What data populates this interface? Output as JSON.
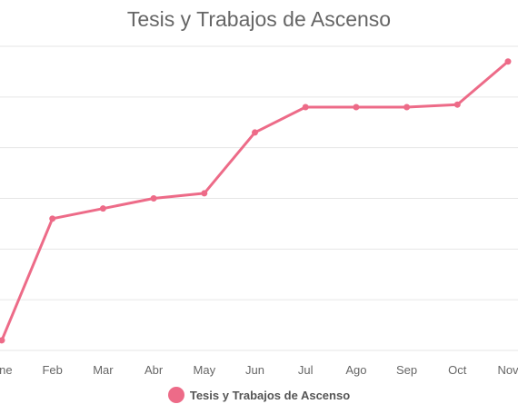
{
  "chart_data": {
    "type": "line",
    "title": "Tesis y Trabajos de Ascenso",
    "categories": [
      "Ene",
      "Feb",
      "Mar",
      "Abr",
      "May",
      "Jun",
      "Jul",
      "Ago",
      "Sep",
      "Oct",
      "Nov"
    ],
    "series": [
      {
        "name": "Tesis y Trabajos de Ascenso",
        "values": [
          0,
          24,
          26,
          28,
          29,
          41,
          46,
          46,
          46,
          46.5,
          55
        ],
        "color": "#ed6b88"
      }
    ],
    "ylim": [
      -2,
      58
    ],
    "grid": true,
    "legend": "bottom"
  }
}
